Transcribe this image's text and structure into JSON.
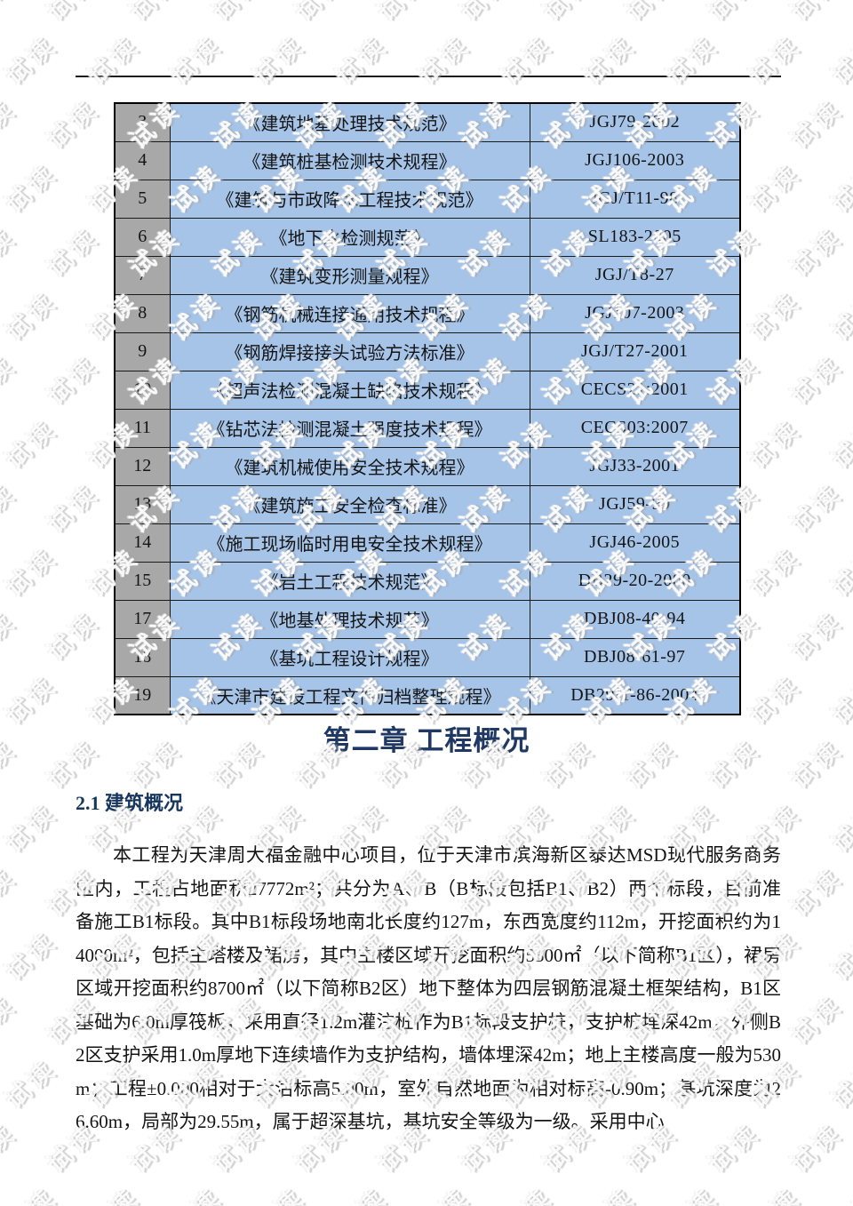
{
  "watermark": {
    "text": "试读"
  },
  "colors": {
    "table_blue": "#A6C4E8",
    "table_gray": "#A8A8A8",
    "heading_navy": "#1F3864",
    "subheading_navy": "#17365D"
  },
  "standards_table": {
    "rows": [
      {
        "no": "3",
        "name": "《建筑地基处理技术规范》",
        "code": "JGJ79-2002"
      },
      {
        "no": "4",
        "name": "《建筑桩基检测技术规程》",
        "code": "JGJ106-2003"
      },
      {
        "no": "5",
        "name": "《建筑与市政降水工程技术规范》",
        "code": "JGJ/T11-98"
      },
      {
        "no": "6",
        "name": "《地下水检测规范》",
        "code": "SL183-2005"
      },
      {
        "no": "7",
        "name": "《建筑变形测量规程》",
        "code": "JGJ/T8-27"
      },
      {
        "no": "8",
        "name": "《钢筋机械连接通用技术规程》",
        "code": "JGJ107-2003"
      },
      {
        "no": "9",
        "name": "《钢筋焊接接头试验方法标准》",
        "code": "JGJ/T27-2001"
      },
      {
        "no": "10",
        "name": "《超声法检测混凝土缺陷技术规程》",
        "code": "CECS21:2001"
      },
      {
        "no": "11",
        "name": "《钻芯法检测混凝土强度技术规程》",
        "code": "CECS03:2007"
      },
      {
        "no": "12",
        "name": "《建筑机械使用安全技术规程》",
        "code": "JGJ33-2001"
      },
      {
        "no": "13",
        "name": "《建筑施工安全检查标准》",
        "code": "JGJ59-99"
      },
      {
        "no": "14",
        "name": "《施工现场临时用电安全技术规程》",
        "code": "JGJ46-2005"
      },
      {
        "no": "15",
        "name": "《岩土工程技术规范》",
        "code": "DB29-20-2000"
      },
      {
        "no": "17",
        "name": "《地基处理技术规范》",
        "code": "DBJ08-40-94"
      },
      {
        "no": "18",
        "name": "《基坑工程设计规程》",
        "code": "DBJ08-61-97"
      },
      {
        "no": "19",
        "name": "《天津市建设工程文件归档整理规程》",
        "code": "DB29/T-86-2004"
      }
    ]
  },
  "chapter": {
    "title": "第二章 工程概况"
  },
  "section": {
    "title": "2.1 建筑概况"
  },
  "body": {
    "paragraph": "本工程为天津周大福金融中心项目，位于天津市滨海新区泰达MSD现代服务商务区内，工程占地面积27772m²；共分为A、B（B标段包括B1、B2）两个标段，目前准备施工B1标段。其中B1标段场地南北长度约127m，东西宽度约112m，开挖面积约为14000m²，包括主塔楼及裙房，其中主楼区域开挖面积约5300㎡（以下简称B1区），裙房区域开挖面积约8700㎡（以下简称B2区）地下整体为四层钢筋混凝土框架结构，B1区基础为6.0m厚筏板，采用直径1.2m灌注桩作为B1标段支护桩，支护桩埋深42m，外侧B2区支护采用1.0m厚地下连续墙作为支护结构，墙体埋深42m；地上主楼高度一般为530m；工程±0.000相对于大沽标高5.00m，室外自然地面为相对标高-0.90m；基坑深度为26.60m，局部为29.55m，属于超深基坑，基坑安全等级为一级。采用中心"
  }
}
